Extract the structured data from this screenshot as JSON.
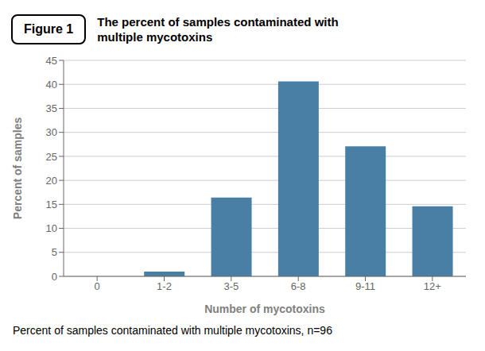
{
  "chart_data": {
    "type": "bar",
    "title": "The percent of samples contaminated with multiple mycotoxins",
    "annotations": [
      "Figure 1",
      "Percent of samples contaminated with multiple mycotoxins, n=96"
    ],
    "xlabel": "Number of mycotoxins",
    "ylabel": "Percent of samples",
    "categories": [
      "0",
      "1-2",
      "3-5",
      "6-8",
      "9-11",
      "12+"
    ],
    "values": [
      0,
      1.0,
      16.4,
      40.6,
      27.1,
      14.6
    ],
    "color": "#4a7fa5",
    "ylim": [
      0,
      45
    ],
    "yticks": [
      0,
      5,
      10,
      15,
      20,
      25,
      30,
      35,
      40,
      45
    ],
    "grid": true
  }
}
